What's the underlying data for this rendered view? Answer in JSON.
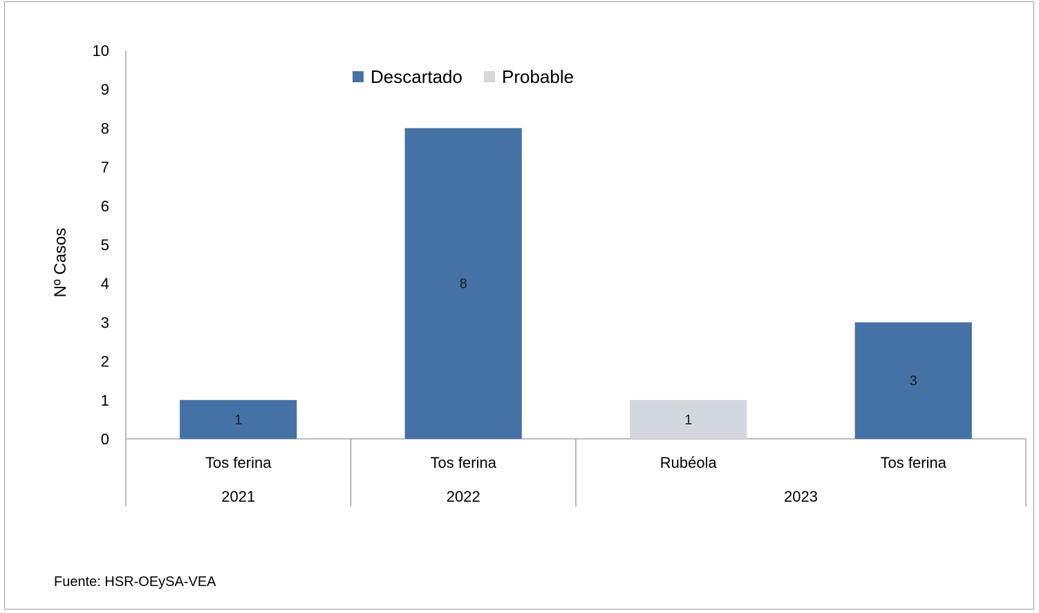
{
  "chart_data": {
    "type": "bar",
    "ylabel": "Nº Casos",
    "ylim": [
      0,
      10
    ],
    "y_ticks": [
      0,
      1,
      2,
      3,
      4,
      5,
      6,
      7,
      8,
      9,
      10
    ],
    "grid": false,
    "legend": {
      "position": "top",
      "entries": [
        {
          "name": "Descartado",
          "color": "#4472a6"
        },
        {
          "name": "Probable",
          "color": "#d3d8de"
        }
      ]
    },
    "categories": [
      {
        "label": "Tos ferina",
        "group": "2021"
      },
      {
        "label": "Tos ferina",
        "group": "2022"
      },
      {
        "label": "Rubéola",
        "group": "2023"
      },
      {
        "label": "Tos ferina",
        "group": "2023"
      }
    ],
    "groups": [
      "2021",
      "2022",
      "2023"
    ],
    "series": [
      {
        "name": "Descartado",
        "color": "#4472a6",
        "values": [
          1,
          8,
          0,
          3
        ]
      },
      {
        "name": "Probable",
        "color": "#d3d8de",
        "values": [
          0,
          0,
          1,
          0
        ]
      }
    ],
    "data_labels": [
      "1",
      "8",
      "1",
      "3"
    ]
  },
  "footer": {
    "source": "Fuente: HSR-OEySA-VEA"
  }
}
